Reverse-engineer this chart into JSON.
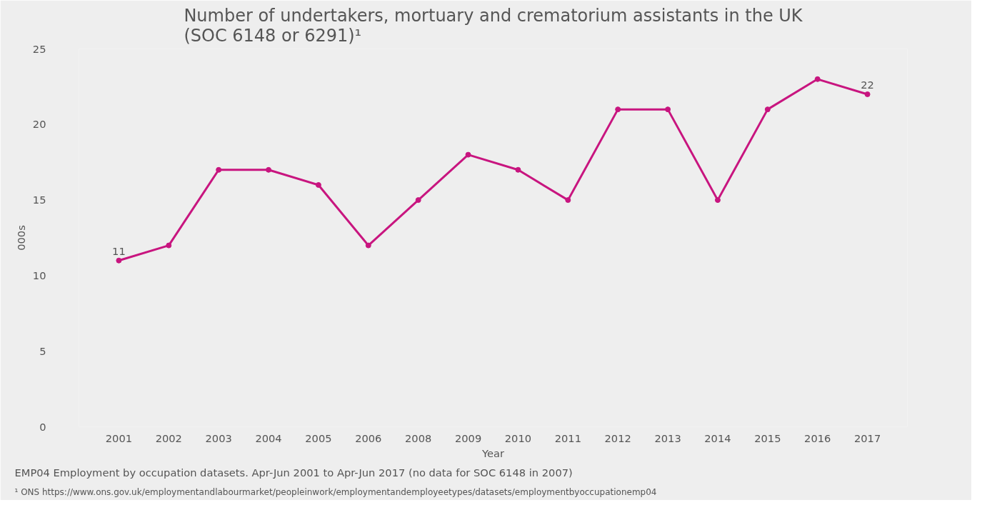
{
  "chart_data": {
    "type": "line",
    "title": "Number of undertakers, mortuary and crematorium assistants in the UK (SOC 6148 or 6291)¹",
    "xlabel": "Year",
    "ylabel": "000s",
    "categories": [
      "2001",
      "2002",
      "2003",
      "2004",
      "2005",
      "2006",
      "2008",
      "2009",
      "2010",
      "2011",
      "2012",
      "2013",
      "2014",
      "2015",
      "2016",
      "2017"
    ],
    "values": [
      11,
      12,
      17,
      17,
      16,
      12,
      15,
      18,
      17,
      15,
      21,
      21,
      15,
      21,
      23,
      22
    ],
    "value_labels": [
      "11",
      null,
      null,
      null,
      null,
      null,
      null,
      null,
      null,
      null,
      null,
      null,
      null,
      null,
      null,
      "22"
    ],
    "color": "#c8157f",
    "marker": "circle",
    "line_style": "solid",
    "ylim": [
      0,
      25
    ],
    "yticks": [
      0,
      5,
      10,
      15,
      20,
      25
    ],
    "annotations": [
      "EMP04 Employment by occupation datasets.  Apr-Jun 2001 to Apr-Jun 2017 (no data for SOC 6148 in 2007)",
      "¹ ONS https://www.ons.gov.uk/employmentandlabourmarket/peopleinwork/employmentandemployeetypes/datasets/employmentbyoccupationemp04"
    ]
  }
}
